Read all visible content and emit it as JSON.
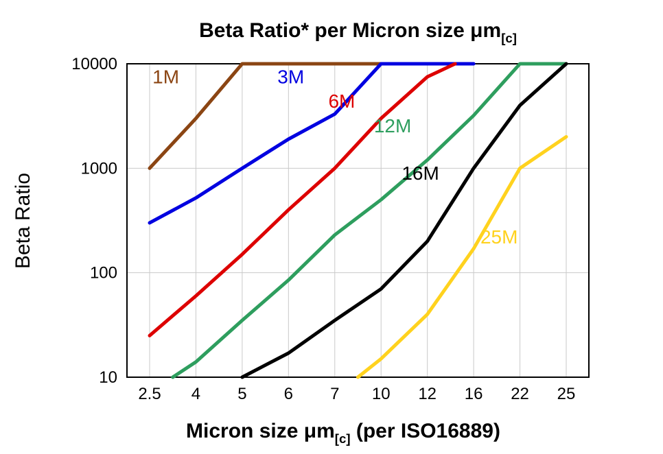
{
  "labels": {
    "title_pre": "Beta Ratio* per Micron size ",
    "title_mu": "μm",
    "title_sub": "[c]",
    "ylabel": "Beta Ratio",
    "xlabel_pre": "Micron size ",
    "xlabel_mu": "μm",
    "xlabel_sub": "[c]",
    "xlabel_post": " (per ISO16889)"
  },
  "chart_data": {
    "type": "line",
    "title": "Beta Ratio* per Micron size μm[c]",
    "xlabel": "Micron size μm[c] (per ISO16889)",
    "ylabel": "Beta Ratio",
    "x_type": "categorical",
    "categories": [
      "2.5",
      "4",
      "5",
      "6",
      "7",
      "10",
      "12",
      "16",
      "22",
      "25"
    ],
    "y_scale": "log",
    "ylim": [
      10,
      10000
    ],
    "y_ticks": [
      10,
      100,
      1000,
      10000
    ],
    "grid": true,
    "grid_color": "#c9c9c9",
    "axis_color": "#000000",
    "legend_position": "inline-labels",
    "series": [
      {
        "name": "1M",
        "color": "#8B4513",
        "label_at": [
          0.35,
          6500
        ],
        "points": [
          [
            0,
            1000
          ],
          [
            1,
            3000
          ],
          [
            2,
            10000
          ],
          [
            5,
            10000
          ]
        ]
      },
      {
        "name": "3M",
        "color": "#0000E0",
        "label_at": [
          3.05,
          6500
        ],
        "points": [
          [
            0,
            300
          ],
          [
            1,
            520
          ],
          [
            2,
            1000
          ],
          [
            3,
            1900
          ],
          [
            4,
            3300
          ],
          [
            5,
            10000
          ],
          [
            7,
            10000
          ]
        ]
      },
      {
        "name": "6M",
        "color": "#DD0000",
        "label_at": [
          4.15,
          3800
        ],
        "points": [
          [
            0,
            25
          ],
          [
            1,
            60
          ],
          [
            2,
            150
          ],
          [
            3,
            400
          ],
          [
            4,
            1000
          ],
          [
            5,
            3000
          ],
          [
            6,
            7500
          ],
          [
            6.6,
            10000
          ]
        ]
      },
      {
        "name": "12M",
        "color": "#2E9E5E",
        "label_at": [
          5.25,
          2200
        ],
        "points": [
          [
            0.5,
            10
          ],
          [
            1,
            14
          ],
          [
            2,
            35
          ],
          [
            3,
            85
          ],
          [
            4,
            230
          ],
          [
            5,
            500
          ],
          [
            6,
            1200
          ],
          [
            7,
            3200
          ],
          [
            8,
            10000
          ],
          [
            9,
            10000
          ]
        ]
      },
      {
        "name": "16M",
        "color": "#000000",
        "label_at": [
          5.85,
          780
        ],
        "points": [
          [
            2,
            10
          ],
          [
            3,
            17
          ],
          [
            4,
            35
          ],
          [
            5,
            70
          ],
          [
            6,
            200
          ],
          [
            7,
            1000
          ],
          [
            8,
            4000
          ],
          [
            9,
            10000
          ]
        ]
      },
      {
        "name": "25M",
        "color": "#FFD21E",
        "label_at": [
          7.55,
          190
        ],
        "points": [
          [
            4.5,
            10
          ],
          [
            5,
            15
          ],
          [
            6,
            40
          ],
          [
            7,
            170
          ],
          [
            8,
            1000
          ],
          [
            9,
            2000
          ]
        ]
      }
    ]
  }
}
